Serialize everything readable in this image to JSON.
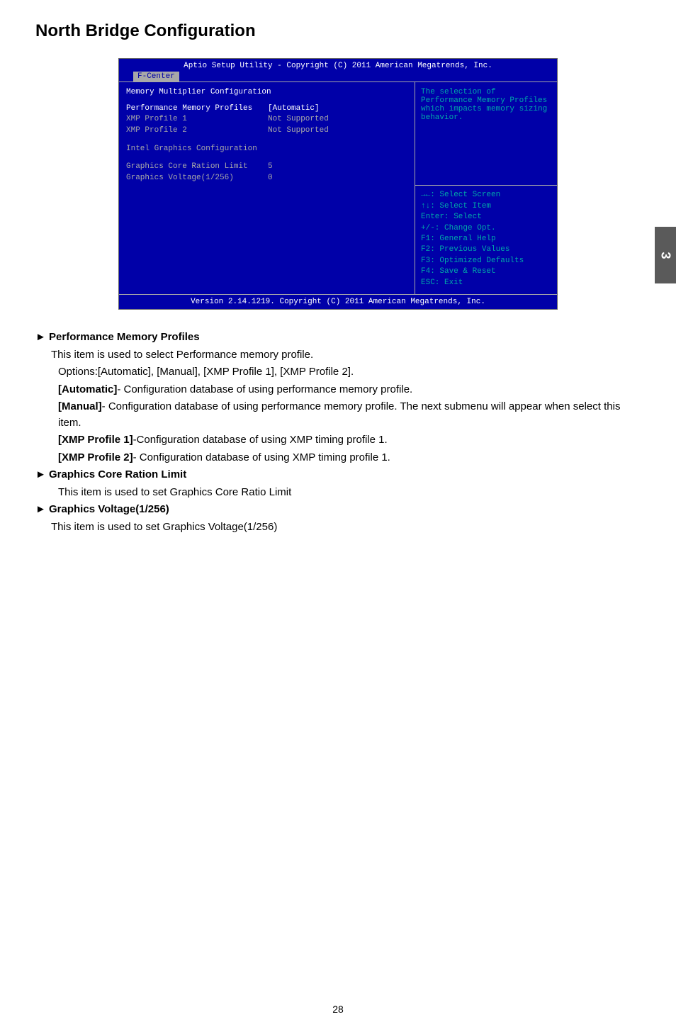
{
  "page": {
    "title": "North Bridge Configuration",
    "tab_number": "3",
    "page_number": "28"
  },
  "bios": {
    "header": "Aptio Setup Utility - Copyright (C) 2011 American Megatrends, Inc.",
    "tab": "F-Center",
    "left": {
      "heading": "Memory Multiplier Configuration",
      "rows": [
        {
          "label": "Performance Memory Profiles",
          "value": "[Automatic]",
          "selected": true
        },
        {
          "label": "XMP Profile 1",
          "value": "Not Supported"
        },
        {
          "label": "XMP Profile 2",
          "value": "Not Supported"
        }
      ],
      "section2": "Intel Graphics Configuration",
      "rows2": [
        {
          "label": "Graphics Core Ration Limit",
          "value": "5"
        },
        {
          "label": "Graphics Voltage(1/256)",
          "value": "0"
        }
      ]
    },
    "right": {
      "help": "The selection of Performance Memory Profiles which impacts memory sizing behavior.",
      "keys": [
        "→←: Select Screen",
        "↑↓: Select Item",
        "Enter: Select",
        "+/-: Change Opt.",
        "F1: General Help",
        "F2: Previous Values",
        "F3: Optimized Defaults",
        "F4: Save & Reset",
        "ESC: Exit"
      ]
    },
    "footer": "Version 2.14.1219. Copyright (C) 2011 American Megatrends, Inc."
  },
  "doc": {
    "s1": {
      "head": "► Performance Memory Profiles",
      "l1": "This item is used to select Performance memory profile.",
      "l2": "Options:[Automatic], [Manual], [XMP Profile 1], [XMP Profile 2].",
      "l3a": "[Automatic]",
      "l3b": "- Configuration database of using performance memory  profile.",
      "l4a": "[Manual]",
      "l4b": "- Configuration database of using performance memory profile. The next submenu will appear when select this item.",
      "l5a": "[XMP Profile 1]",
      "l5b": "-Configuration database of using XMP timing profile 1.",
      "l6a": "[XMP Profile 2]",
      "l6b": "- Configuration database of using XMP timing profile 1."
    },
    "s2": {
      "head": "► Graphics Core Ration Limit",
      "l1": "This item is used to set Graphics Core Ratio Limit"
    },
    "s3": {
      "head": "► Graphics Voltage(1/256)",
      "l1": "This item is used to set Graphics Voltage(1/256)"
    }
  }
}
